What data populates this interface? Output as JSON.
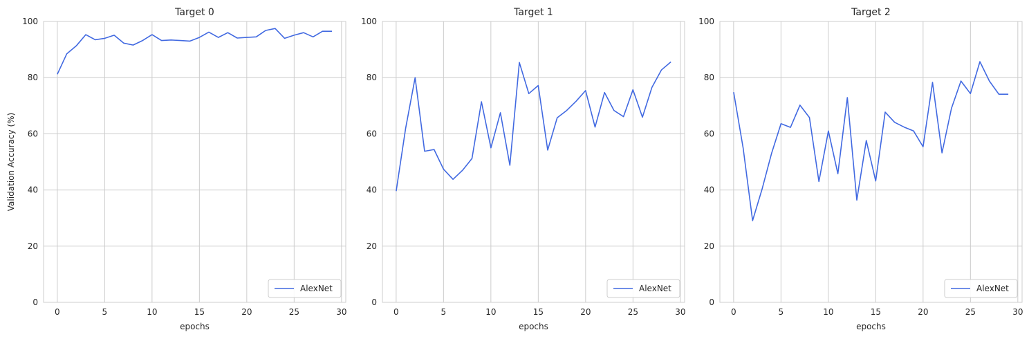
{
  "chart_data": [
    {
      "type": "line",
      "title": "Target 0",
      "xlabel": "epochs",
      "ylabel": "Validation Accuracy (%)",
      "xlim": [
        -1.45,
        30.45
      ],
      "ylim": [
        0,
        100
      ],
      "xticks": [
        "0",
        "5",
        "10",
        "15",
        "20",
        "25",
        "30"
      ],
      "yticks": [
        "0",
        "20",
        "40",
        "60",
        "80",
        "100"
      ],
      "grid": true,
      "legend_position": "lower-right",
      "color": "#4169e1",
      "series": [
        {
          "name": "AlexNet",
          "x": [
            0,
            1,
            2,
            3,
            4,
            5,
            6,
            7,
            8,
            9,
            10,
            11,
            12,
            13,
            14,
            15,
            16,
            17,
            18,
            19,
            20,
            21,
            22,
            23,
            24,
            25,
            26,
            27,
            28,
            29
          ],
          "y": [
            81.2,
            88.5,
            91.3,
            95.3,
            93.5,
            94.0,
            95.1,
            92.3,
            91.6,
            93.2,
            95.3,
            93.2,
            93.4,
            93.2,
            93.0,
            94.3,
            96.2,
            94.3,
            96.0,
            94.1,
            94.3,
            94.5,
            96.8,
            97.5,
            94.0,
            95.1,
            96.0,
            94.5,
            96.5,
            96.5
          ]
        }
      ]
    },
    {
      "type": "line",
      "title": "Target 1",
      "xlabel": "epochs",
      "ylabel": "",
      "xlim": [
        -1.45,
        30.45
      ],
      "ylim": [
        0,
        100
      ],
      "xticks": [
        "0",
        "5",
        "10",
        "15",
        "20",
        "25",
        "30"
      ],
      "yticks": [
        "0",
        "20",
        "40",
        "60",
        "80",
        "100"
      ],
      "grid": true,
      "legend_position": "lower-right",
      "color": "#4169e1",
      "series": [
        {
          "name": "AlexNet",
          "x": [
            0,
            1,
            2,
            3,
            4,
            5,
            6,
            7,
            8,
            9,
            10,
            11,
            12,
            13,
            14,
            15,
            16,
            17,
            18,
            19,
            20,
            21,
            22,
            23,
            24,
            25,
            26,
            27,
            28,
            29
          ],
          "y": [
            39.6,
            62.0,
            80.0,
            53.8,
            54.4,
            47.4,
            43.8,
            47.0,
            51.2,
            71.4,
            55.0,
            67.5,
            48.8,
            85.4,
            74.3,
            77.2,
            54.2,
            65.7,
            68.3,
            71.6,
            75.4,
            62.4,
            74.7,
            68.3,
            66.1,
            75.7,
            65.9,
            76.5,
            82.7,
            85.6
          ]
        }
      ]
    },
    {
      "type": "line",
      "title": "Target 2",
      "xlabel": "epochs",
      "ylabel": "",
      "xlim": [
        -1.45,
        30.45
      ],
      "ylim": [
        0,
        100
      ],
      "xticks": [
        "0",
        "5",
        "10",
        "15",
        "20",
        "25",
        "30"
      ],
      "yticks": [
        "0",
        "20",
        "40",
        "60",
        "80",
        "100"
      ],
      "grid": true,
      "legend_position": "lower-right",
      "color": "#4169e1",
      "series": [
        {
          "name": "AlexNet",
          "x": [
            0,
            1,
            2,
            3,
            4,
            5,
            6,
            7,
            8,
            9,
            10,
            11,
            12,
            13,
            14,
            15,
            16,
            17,
            18,
            19,
            20,
            21,
            22,
            23,
            24,
            25,
            26,
            27,
            28,
            29
          ],
          "y": [
            74.8,
            55.0,
            29.1,
            40.3,
            53.0,
            63.6,
            62.3,
            70.2,
            65.8,
            43.0,
            61.0,
            45.8,
            72.9,
            36.4,
            57.6,
            43.2,
            67.7,
            64.1,
            62.4,
            61.0,
            55.4,
            78.3,
            53.2,
            69.1,
            78.8,
            74.3,
            85.7,
            78.8,
            74.1,
            74.1
          ]
        }
      ]
    }
  ]
}
